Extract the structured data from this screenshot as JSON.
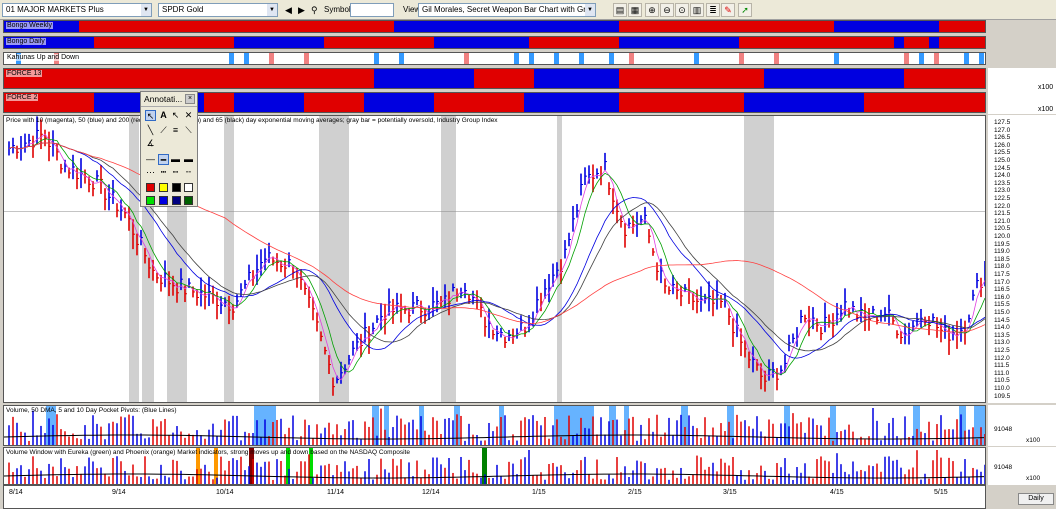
{
  "toolbar": {
    "list_combo": "01 MAJOR MARKETS Plus",
    "symbol_combo": "SPDR Gold",
    "symbol_label": "Symbol:",
    "symbol_value": "",
    "view_label": "View:",
    "view_combo": "Gil Morales, Secret Weapon Bar Chart with Group Index"
  },
  "indicators": [
    {
      "label": "Bongo Weekly"
    },
    {
      "label": "Bongo Daily"
    },
    {
      "label": "Kahunas Up and Down"
    },
    {
      "label": "FORCE 13"
    },
    {
      "label": "FORCE 2"
    }
  ],
  "price_pane": {
    "title": "Price with 10 (magenta), 50 (blue) and 200 (red) day ...s; 20 (green) and 65 (black) day exponential moving averages; gray bar = potentially oversold, Industry Group Index",
    "ticks": [
      "127.5",
      "127.0",
      "126.5",
      "126.0",
      "125.5",
      "125.0",
      "124.5",
      "124.0",
      "123.5",
      "123.0",
      "122.5",
      "122.0",
      "121.5",
      "121.0",
      "120.5",
      "120.0",
      "119.5",
      "119.0",
      "118.5",
      "118.0",
      "117.5",
      "117.0",
      "116.5",
      "116.0",
      "115.5",
      "115.0",
      "114.5",
      "114.0",
      "113.5",
      "113.0",
      "112.5",
      "112.0",
      "111.5",
      "111.0",
      "110.5",
      "110.0",
      "109.5"
    ]
  },
  "volume_pane": {
    "title": "Volume, 50 DMA, 5 and 10 Day Pocket Pivots: (Blue Lines)",
    "value": "91048",
    "scale": "x100"
  },
  "volume2_pane": {
    "title": "Volume Window with Eureka (green) and Phoenix (orange) Market indicators, strong moves up and down based on the NASDAQ Composite",
    "value": "91048",
    "scale": "x100"
  },
  "force_scale": "x100",
  "annotation": {
    "title": "Annotati..."
  },
  "dates": [
    "8/14",
    "9/14",
    "10/14",
    "11/14",
    "12/14",
    "1/15",
    "2/15",
    "3/15",
    "4/15",
    "5/15"
  ],
  "daily_button": "Daily",
  "colors": {
    "red": "#e00000",
    "blue": "#0000e0",
    "bg": "#ffffff"
  }
}
